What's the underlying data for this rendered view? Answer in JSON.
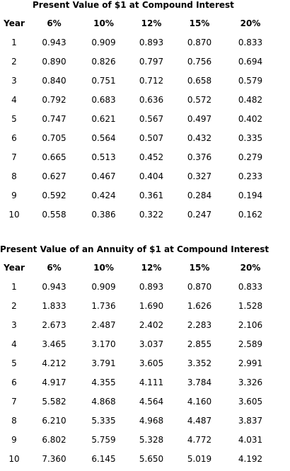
{
  "table1": {
    "title": "Present Value of $1 at Compound Interest",
    "headers": [
      "Year",
      "6%",
      "10%",
      "12%",
      "15%",
      "20%"
    ],
    "rows": [
      [
        "1",
        "0.943",
        "0.909",
        "0.893",
        "0.870",
        "0.833"
      ],
      [
        "2",
        "0.890",
        "0.826",
        "0.797",
        "0.756",
        "0.694"
      ],
      [
        "3",
        "0.840",
        "0.751",
        "0.712",
        "0.658",
        "0.579"
      ],
      [
        "4",
        "0.792",
        "0.683",
        "0.636",
        "0.572",
        "0.482"
      ],
      [
        "5",
        "0.747",
        "0.621",
        "0.567",
        "0.497",
        "0.402"
      ],
      [
        "6",
        "0.705",
        "0.564",
        "0.507",
        "0.432",
        "0.335"
      ],
      [
        "7",
        "0.665",
        "0.513",
        "0.452",
        "0.376",
        "0.279"
      ],
      [
        "8",
        "0.627",
        "0.467",
        "0.404",
        "0.327",
        "0.233"
      ],
      [
        "9",
        "0.592",
        "0.424",
        "0.361",
        "0.284",
        "0.194"
      ],
      [
        "10",
        "0.558",
        "0.386",
        "0.322",
        "0.247",
        "0.162"
      ]
    ]
  },
  "table2": {
    "title": "Present Value of an Annuity of $1 at Compound Interest",
    "headers": [
      "Year",
      "6%",
      "10%",
      "12%",
      "15%",
      "20%"
    ],
    "rows": [
      [
        "1",
        "0.943",
        "0.909",
        "0.893",
        "0.870",
        "0.833"
      ],
      [
        "2",
        "1.833",
        "1.736",
        "1.690",
        "1.626",
        "1.528"
      ],
      [
        "3",
        "2.673",
        "2.487",
        "2.402",
        "2.283",
        "2.106"
      ],
      [
        "4",
        "3.465",
        "3.170",
        "3.037",
        "2.855",
        "2.589"
      ],
      [
        "5",
        "4.212",
        "3.791",
        "3.605",
        "3.352",
        "2.991"
      ],
      [
        "6",
        "4.917",
        "4.355",
        "4.111",
        "3.784",
        "3.326"
      ],
      [
        "7",
        "5.582",
        "4.868",
        "4.564",
        "4.160",
        "3.605"
      ],
      [
        "8",
        "6.210",
        "5.335",
        "4.968",
        "4.487",
        "3.837"
      ],
      [
        "9",
        "6.802",
        "5.759",
        "5.328",
        "4.772",
        "4.031"
      ],
      [
        "10",
        "7.360",
        "6.145",
        "5.650",
        "5.019",
        "4.192"
      ]
    ]
  }
}
